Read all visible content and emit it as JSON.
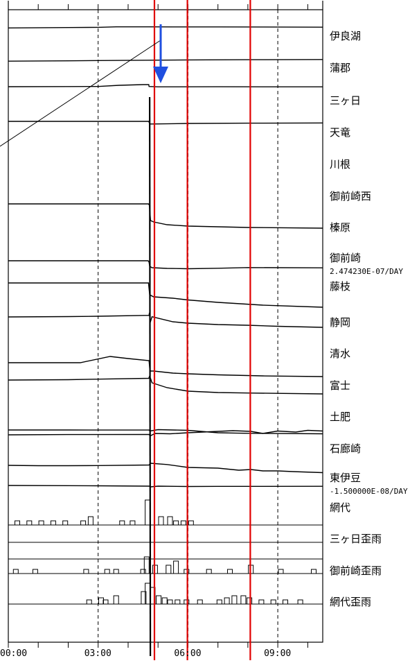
{
  "chart_data": {
    "type": "line",
    "x_unit": "hours",
    "xlim": [
      0,
      10.5
    ],
    "x_ticks": [
      "00:00",
      "03:00",
      "06:00",
      "09:00"
    ],
    "x_tick_values": [
      0,
      3,
      6,
      9
    ],
    "dashed_gridlines_at": [
      3,
      6,
      9
    ],
    "event_time": 4.72,
    "red_markers_at": [
      4.88,
      5.98,
      8.08
    ],
    "annotation_arrow": "blue downward arrow at event time (top)",
    "colors": {
      "trace": "#000000",
      "marker": "#e00000",
      "arrow": "#1f4fe0",
      "event": "#000000"
    },
    "series": [
      {
        "name": "伊良湖",
        "points": [
          [
            0,
            -0.3
          ],
          [
            2,
            0.3
          ],
          [
            3,
            0.6
          ],
          [
            3.6,
            1.3
          ],
          [
            4.7,
            1.3
          ],
          [
            5.5,
            1.2
          ],
          [
            7,
            1.2
          ],
          [
            8.5,
            1.1
          ],
          [
            10.5,
            0.8
          ]
        ]
      },
      {
        "name": "蒲郡",
        "points": [
          [
            0,
            -0.2
          ],
          [
            2,
            0.3
          ],
          [
            3,
            0.7
          ],
          [
            4.7,
            1.2
          ],
          [
            6,
            1.6
          ],
          [
            8,
            1.9
          ],
          [
            10.5,
            2.2
          ]
        ]
      },
      {
        "name": "三ヶ日",
        "points": [
          [
            0,
            0
          ],
          [
            2,
            0.2
          ],
          [
            3,
            0.3
          ],
          [
            3.7,
            2.0
          ],
          [
            4.5,
            3.0
          ],
          [
            4.69,
            3.0
          ],
          [
            4.7,
            0.3
          ],
          [
            5,
            -0.2
          ],
          [
            7,
            -0.1
          ],
          [
            10.5,
            -0.2
          ]
        ]
      },
      {
        "name": "天竜",
        "points": [
          [
            0,
            0
          ],
          [
            4.69,
            0
          ],
          [
            4.72,
            -3.8
          ],
          [
            5,
            -3.7
          ],
          [
            6,
            -3.0
          ],
          [
            8,
            -2.6
          ],
          [
            10.5,
            -2.3
          ]
        ]
      },
      {
        "name": "御前崎西",
        "points": [
          [
            0,
            0
          ],
          [
            4.68,
            0
          ],
          [
            4.71,
            -2
          ],
          [
            4.75,
            -24
          ],
          [
            4.85,
            -26
          ],
          [
            5.3,
            -30
          ],
          [
            6,
            -32
          ],
          [
            8,
            -34
          ],
          [
            10.5,
            -35
          ]
        ]
      },
      {
        "name": "御前崎",
        "points": [
          [
            0,
            0
          ],
          [
            4.67,
            0
          ],
          [
            4.7,
            -2
          ],
          [
            4.72,
            -8
          ],
          [
            4.8,
            -10
          ],
          [
            5.3,
            -11
          ],
          [
            6,
            -11.5
          ],
          [
            7,
            -10.8
          ],
          [
            8,
            -9.8
          ],
          [
            10.5,
            -10.2
          ]
        ]
      },
      {
        "name": "藤枝",
        "points": [
          [
            0,
            0
          ],
          [
            4.68,
            0
          ],
          [
            4.72,
            -17
          ],
          [
            4.85,
            -20
          ],
          [
            5.5,
            -22
          ],
          [
            6,
            -24.5
          ],
          [
            7,
            -28
          ],
          [
            8.5,
            -32
          ],
          [
            10.5,
            -35
          ]
        ]
      },
      {
        "name": "静岡",
        "points": [
          [
            0,
            0
          ],
          [
            2,
            0.5
          ],
          [
            3,
            1
          ],
          [
            4.7,
            2.3
          ],
          [
            4.71,
            6
          ],
          [
            4.74,
            -8
          ],
          [
            4.8,
            0.3
          ],
          [
            5.5,
            -7
          ],
          [
            6,
            -9
          ],
          [
            7,
            -11
          ],
          [
            8,
            -12
          ],
          [
            9,
            -13.5
          ],
          [
            10.5,
            -15
          ]
        ]
      },
      {
        "name": "清水",
        "points": [
          [
            0,
            0
          ],
          [
            2.4,
            0
          ],
          [
            3.4,
            9
          ],
          [
            4,
            6
          ],
          [
            4.7,
            3
          ],
          [
            4.73,
            -12
          ],
          [
            4.85,
            -12
          ],
          [
            5.5,
            -15
          ],
          [
            6,
            -16
          ],
          [
            7,
            -17.5
          ],
          [
            8.5,
            -19
          ],
          [
            10.5,
            -20
          ]
        ]
      },
      {
        "name": "富士",
        "points": [
          [
            0,
            0
          ],
          [
            2,
            0.5
          ],
          [
            3,
            1.3
          ],
          [
            4.69,
            2.5
          ],
          [
            4.72,
            6
          ],
          [
            4.8,
            -4
          ],
          [
            5.3,
            -11
          ],
          [
            6,
            -16
          ],
          [
            7,
            -18
          ],
          [
            8,
            -18.7
          ],
          [
            10.5,
            -20
          ]
        ]
      },
      {
        "name": "土肥",
        "points": [
          [
            0,
            0
          ],
          [
            2,
            0
          ],
          [
            3,
            -0.1
          ],
          [
            4.7,
            -0.1
          ],
          [
            4.73,
            -1.5
          ],
          [
            5,
            0.5
          ],
          [
            6,
            -0.5
          ],
          [
            7,
            -4
          ],
          [
            8,
            -4.8
          ],
          [
            10.5,
            -5.5
          ]
        ]
      },
      {
        "name": "石廊崎",
        "points": [
          [
            0,
            0
          ],
          [
            2,
            0.4
          ],
          [
            4.7,
            0.5
          ],
          [
            4.74,
            -1.5
          ],
          [
            4.9,
            2
          ],
          [
            5.4,
            1.5
          ],
          [
            6,
            3
          ],
          [
            7,
            5
          ],
          [
            7.5,
            6
          ],
          [
            8.1,
            5
          ],
          [
            8.5,
            2
          ],
          [
            9,
            5.5
          ],
          [
            9.6,
            4
          ],
          [
            10,
            6.5
          ],
          [
            10.5,
            5.5
          ]
        ]
      },
      {
        "name": "東伊豆",
        "points": [
          [
            0,
            0
          ],
          [
            1,
            -0.5
          ],
          [
            2,
            -0.5
          ],
          [
            3,
            -0.3
          ],
          [
            4.7,
            0.5
          ],
          [
            4.75,
            3
          ],
          [
            5.3,
            1.2
          ],
          [
            6,
            -3
          ],
          [
            7,
            -4
          ],
          [
            7.7,
            -7
          ],
          [
            8.1,
            -6
          ],
          [
            8.5,
            -8
          ],
          [
            9,
            -8
          ],
          [
            9.5,
            -9
          ],
          [
            10.5,
            -10.5
          ]
        ]
      },
      {
        "name": "網代",
        "points": [
          [
            0,
            0
          ],
          [
            2,
            -0.3
          ],
          [
            3,
            -0.5
          ],
          [
            4.7,
            -1
          ],
          [
            4.75,
            -2
          ],
          [
            5,
            -1
          ],
          [
            6,
            -1.5
          ],
          [
            7,
            -1.3
          ],
          [
            8.5,
            -1.3
          ],
          [
            10.5,
            -1.2
          ]
        ]
      },
      {
        "name": "三ヶ日歪雨",
        "type": "bar",
        "values": [
          [
            0.3,
            1
          ],
          [
            0.7,
            1
          ],
          [
            1.1,
            1
          ],
          [
            1.5,
            1
          ],
          [
            1.9,
            1
          ],
          [
            2.5,
            1
          ],
          [
            2.75,
            2
          ],
          [
            3.8,
            1
          ],
          [
            4.15,
            1
          ],
          [
            4.65,
            6
          ],
          [
            5.1,
            2
          ],
          [
            5.4,
            2
          ],
          [
            5.6,
            1
          ],
          [
            5.85,
            1
          ],
          [
            6.1,
            1
          ]
        ]
      },
      {
        "name": "御前崎歪雨",
        "type": "bar",
        "values": [
          [
            0.25,
            1
          ],
          [
            0.9,
            1
          ],
          [
            2.6,
            1
          ],
          [
            3.3,
            1
          ],
          [
            3.6,
            1
          ],
          [
            4.5,
            1
          ],
          [
            4.62,
            4
          ],
          [
            4.9,
            2
          ],
          [
            5.35,
            2
          ],
          [
            5.6,
            3
          ],
          [
            5.95,
            1
          ],
          [
            6.7,
            1
          ],
          [
            7.4,
            1
          ],
          [
            8.1,
            2
          ],
          [
            9.1,
            1
          ],
          [
            10.2,
            1
          ]
        ]
      },
      {
        "name": "網代歪雨",
        "type": "bar",
        "values": [
          [
            2.7,
            1
          ],
          [
            3.1,
            1.5
          ],
          [
            3.25,
            1
          ],
          [
            3.6,
            2
          ],
          [
            4.52,
            3
          ],
          [
            4.65,
            5
          ],
          [
            4.82,
            4
          ],
          [
            5.02,
            2
          ],
          [
            5.22,
            1.5
          ],
          [
            5.4,
            1
          ],
          [
            5.65,
            1
          ],
          [
            5.95,
            1
          ],
          [
            6.4,
            1
          ],
          [
            7.05,
            1
          ],
          [
            7.3,
            1.5
          ],
          [
            7.55,
            2
          ],
          [
            7.85,
            2
          ],
          [
            8.05,
            1.5
          ],
          [
            8.45,
            1
          ],
          [
            8.85,
            1
          ],
          [
            9.25,
            1
          ],
          [
            9.75,
            1
          ]
        ]
      }
    ]
  },
  "labels": {
    "irago": "伊良湖",
    "gamagori": "蒲郡",
    "mikkabi": "三ヶ日",
    "tenryu": "天竜",
    "kawane": "川根",
    "omaezaki_nishi": "御前崎西",
    "haibara": "榛原",
    "omaezaki": "御前崎",
    "omaezaki_rate": "2.474230E-07/DAY",
    "fujieda": "藤枝",
    "shizuoka": "静岡",
    "shimizu": "清水",
    "fuji": "富士",
    "toi": "土肥",
    "irozaki": "石廊崎",
    "higashi_izu": "東伊豆",
    "higashi_izu_rate": "-1.500000E-08/DAY",
    "ajiro": "網代",
    "mikkabi_rain": "三ヶ日歪雨",
    "omaezaki_rain": "御前崎歪雨",
    "ajiro_rain": "網代歪雨"
  }
}
